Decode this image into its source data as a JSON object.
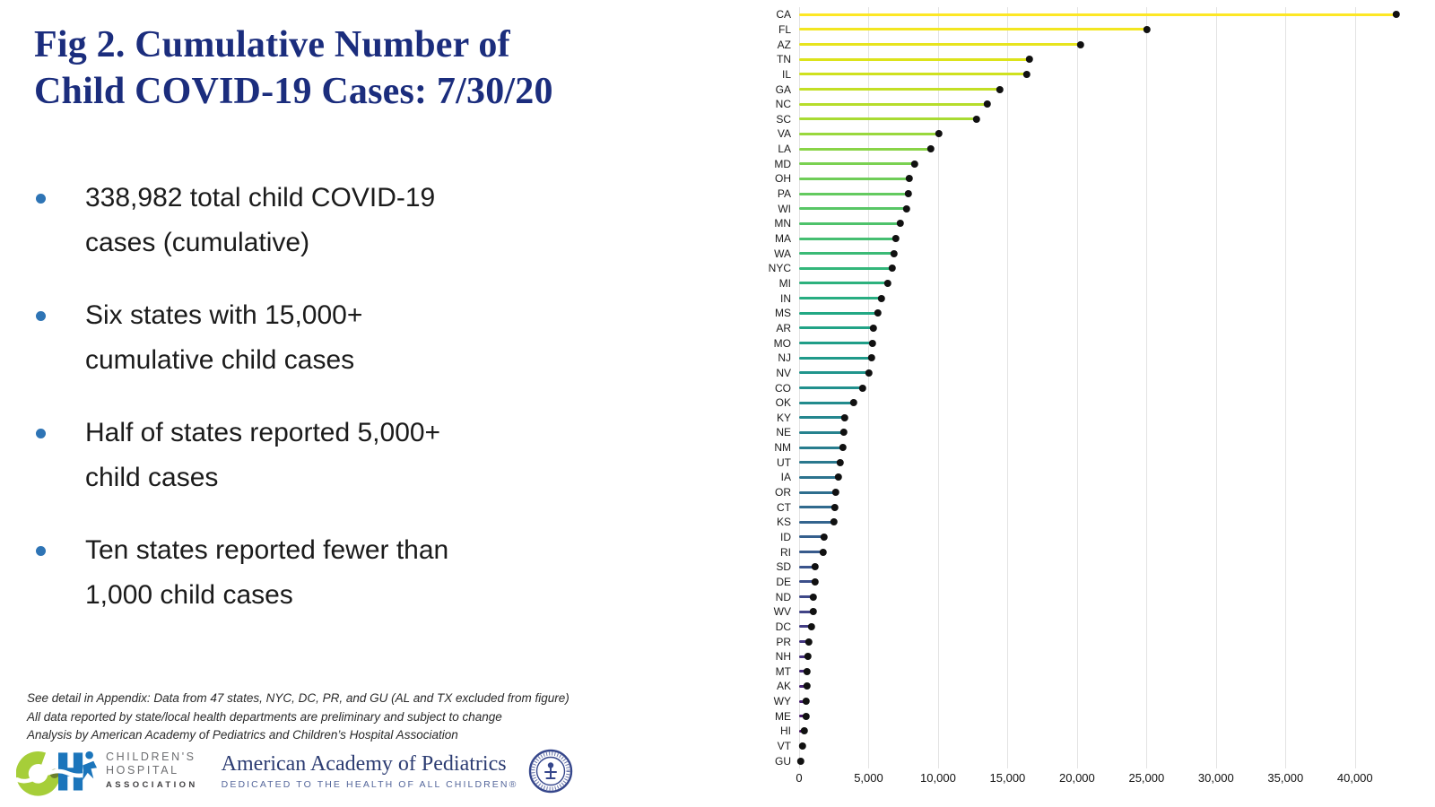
{
  "slide": {
    "title": {
      "line1": "Fig 2. Cumulative Number of",
      "line2": "Child COVID-19 Cases: 7/30/20"
    },
    "bullets": [
      {
        "line1": "338,982 total child COVID-19",
        "line2": "cases (cumulative)"
      },
      {
        "line1": "Six states with 15,000+",
        "line2": "cumulative child cases"
      },
      {
        "line1": "Half of states reported 5,000+",
        "line2": "child cases"
      },
      {
        "line1": "Ten states reported fewer than",
        "line2": "1,000 child cases"
      }
    ],
    "footnotes": [
      "See detail in Appendix: Data from 47 states, NYC, DC, PR, and GU (AL and TX excluded from figure)",
      "All data reported by state/local health departments are preliminary and subject to change",
      "Analysis by American Academy of Pediatrics and Children’s Hospital Association"
    ],
    "logos": {
      "cha": {
        "line1": "CHILDREN'S",
        "line2": "HOSPITAL",
        "line3": "ASSOCIATION"
      },
      "aap": {
        "title": "American Academy of Pediatrics",
        "tagline": "DEDICATED TO THE HEALTH OF ALL CHILDREN®"
      }
    },
    "colors": {
      "title_navy": "#1b2d7d",
      "bullet_blue": "#2e74b5",
      "cha_green": "#a6ce39",
      "cha_blue": "#1b75bb",
      "aap_navy": "#2c3c72",
      "dot_black": "#111111",
      "gridline_gray": "#e3e3e3"
    }
  },
  "chart_data": {
    "type": "bar",
    "variant": "horizontal-lollipop",
    "title": "",
    "xlabel": "",
    "ylabel": "",
    "grid": "vertical",
    "legend": "none",
    "xlim": [
      0,
      43500
    ],
    "x_ticks": [
      0,
      5000,
      10000,
      15000,
      20000,
      25000,
      30000,
      35000,
      40000
    ],
    "x_tick_labels": [
      "0",
      "5,000",
      "10,000",
      "15,000",
      "20,000",
      "25,000",
      "30,000",
      "35,000",
      "40,000"
    ],
    "categories": [
      "CA",
      "FL",
      "AZ",
      "TN",
      "IL",
      "GA",
      "NC",
      "SC",
      "VA",
      "LA",
      "MD",
      "OH",
      "PA",
      "WI",
      "MN",
      "MA",
      "WA",
      "NYC",
      "MI",
      "IN",
      "MS",
      "AR",
      "MO",
      "NJ",
      "NV",
      "CO",
      "OK",
      "KY",
      "NE",
      "NM",
      "UT",
      "IA",
      "OR",
      "CT",
      "KS",
      "ID",
      "RI",
      "SD",
      "DE",
      "ND",
      "WV",
      "DC",
      "PR",
      "NH",
      "MT",
      "AK",
      "WY",
      "ME",
      "HI",
      "VT",
      "GU"
    ],
    "values": [
      42900,
      25000,
      20200,
      16500,
      16300,
      14400,
      13500,
      12700,
      10000,
      9400,
      8250,
      7900,
      7800,
      7700,
      7200,
      6900,
      6800,
      6650,
      6350,
      5900,
      5600,
      5300,
      5250,
      5150,
      4950,
      4550,
      3870,
      3250,
      3180,
      3100,
      2900,
      2800,
      2600,
      2500,
      2450,
      1760,
      1700,
      1100,
      1075,
      950,
      940,
      860,
      650,
      580,
      520,
      510,
      430,
      420,
      300,
      215,
      90
    ],
    "palette_stops": [
      "#fde725",
      "#d8e219",
      "#addc30",
      "#7ad151",
      "#54c568",
      "#35b779",
      "#22a884",
      "#1f988b",
      "#23888e",
      "#2a788e",
      "#31688e",
      "#39568c",
      "#414487",
      "#472f7d",
      "#481b6d",
      "#440154"
    ]
  }
}
